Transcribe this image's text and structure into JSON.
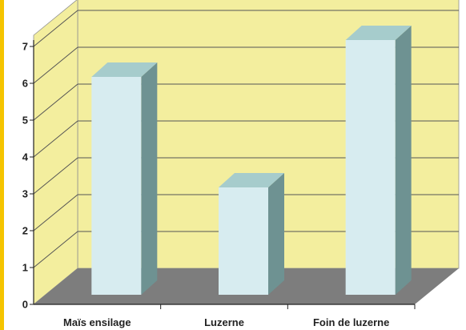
{
  "header_text": "",
  "chart_data": {
    "type": "bar",
    "categories": [
      "Maïs ensilage",
      "Luzerne",
      "Foin de luzerne"
    ],
    "values": [
      6,
      3,
      7
    ],
    "ylim": [
      0,
      7
    ],
    "yticks": [
      0,
      1,
      2,
      3,
      4,
      5,
      6,
      7
    ],
    "grid": true,
    "three_d": true,
    "colors": {
      "bar_front": "#d7ecf0",
      "bar_top": "#a6cccc",
      "bar_side": "#6e9292",
      "wall": "#f3ee9e",
      "floor": "#7d7d7d",
      "frame_accent": "#f5c400"
    }
  }
}
